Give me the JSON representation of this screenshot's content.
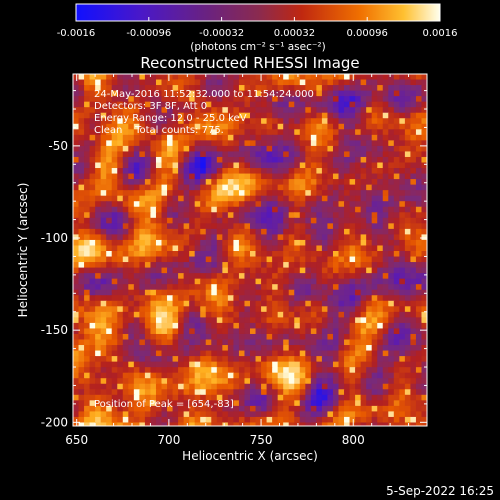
{
  "chart_data": {
    "type": "heatmap",
    "title": "Reconstructed RHESSI Image",
    "xlabel": "Heliocentric X (arcsec)",
    "ylabel": "Heliocentric Y (arcsec)",
    "xlim": [
      648,
      840
    ],
    "ylim": [
      -202,
      -11
    ],
    "x_ticks": [
      "650",
      "700",
      "750",
      "800"
    ],
    "x_tick_values": [
      650,
      700,
      750,
      800
    ],
    "y_ticks": [
      "-50",
      "-100",
      "-150",
      "-200"
    ],
    "y_tick_values": [
      -50,
      -100,
      -150,
      -200
    ],
    "colorbar": {
      "ticks": [
        "-0.0016",
        "-0.00096",
        "-0.00032",
        "0.00032",
        "0.00096",
        "0.0016"
      ],
      "tick_values": [
        -0.0016,
        -0.00096,
        -0.00032,
        0.00032,
        0.00096,
        0.0016
      ],
      "range": [
        -0.0016,
        0.0016
      ],
      "units": "(photons cm⁻² s⁻¹ asec⁻²)",
      "colors": [
        "#1010ff",
        "#5a1ab4",
        "#7a2a78",
        "#b22020",
        "#e85a00",
        "#ffb020",
        "#ffffe8"
      ]
    },
    "annotations": {
      "time_range": "24-May-2016 11:52:32.000 to 11:54:24.000",
      "detectors": "Detectors: 3F 8F, Att 0",
      "energy_range": "Energy Range: 12.0 - 25.0 keV",
      "clean_total": "Clean    Total counts: 775.",
      "peak": "Position of Peak = [654,-83]"
    },
    "timestamp": "5-Sep-2022 16:25"
  }
}
